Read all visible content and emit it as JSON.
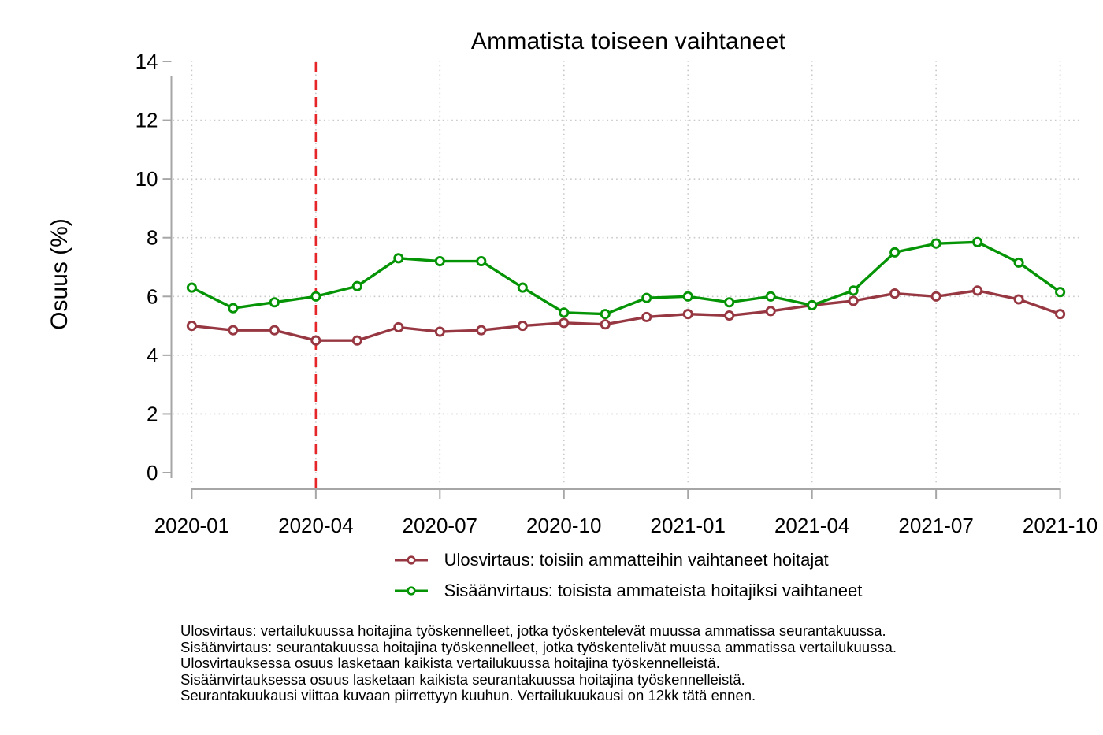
{
  "chart_data": {
    "type": "line",
    "title": "Ammatista toiseen vaihtaneet",
    "ylabel": "Osuus (%)",
    "xlabel": "",
    "ylim": [
      0,
      14
    ],
    "y_ticks": [
      0,
      2,
      4,
      6,
      8,
      10,
      12,
      14
    ],
    "grid": "dotted",
    "legend_position": "bottom",
    "x": [
      "2020-01",
      "2020-02",
      "2020-03",
      "2020-04",
      "2020-05",
      "2020-06",
      "2020-07",
      "2020-08",
      "2020-09",
      "2020-10",
      "2020-11",
      "2020-12",
      "2021-01",
      "2021-02",
      "2021-03",
      "2021-04",
      "2021-05",
      "2021-06",
      "2021-07",
      "2021-08",
      "2021-09",
      "2021-10"
    ],
    "x_tick_labels": [
      "2020-01",
      "2020-04",
      "2020-07",
      "2020-10",
      "2021-01",
      "2021-04",
      "2021-07",
      "2021-10"
    ],
    "series": [
      {
        "name": "Ulosvirtaus: toisiin ammatteihin vaihtaneet hoitajat",
        "color": "#963741",
        "values": [
          5.0,
          4.85,
          4.85,
          4.5,
          4.5,
          4.95,
          4.8,
          4.85,
          5.0,
          5.1,
          5.05,
          5.3,
          5.4,
          5.35,
          5.5,
          5.7,
          5.85,
          6.1,
          6.0,
          6.2,
          5.9,
          5.4
        ]
      },
      {
        "name": "Sisäänvirtaus: toisista ammateista hoitajiksi vaihtaneet",
        "color": "#059405",
        "values": [
          6.3,
          5.6,
          5.8,
          6.0,
          6.35,
          7.3,
          7.2,
          7.2,
          6.3,
          5.45,
          5.4,
          5.95,
          6.0,
          5.8,
          6.0,
          5.7,
          6.2,
          7.5,
          7.8,
          7.85,
          7.15,
          6.15
        ]
      }
    ],
    "reference_line": {
      "x": "2020-04",
      "color": "#e52528",
      "style": "dashed"
    }
  },
  "footnotes": [
    "Ulosvirtaus: vertailukuussa hoitajina työskennelleet, jotka työskentelevät muussa ammatissa seurantakuussa.",
    "Sisäänvirtaus: seurantakuussa hoitajina työskennelleet, jotka työskentelivät muussa ammatissa vertailukuussa.",
    "Ulosvirtauksessa osuus lasketaan kaikista vertailukuussa hoitajina työskennelleistä.",
    "Sisäänvirtauksessa osuus lasketaan kaikista seurantakuussa hoitajina työskennelleistä.",
    "Seurantakuukausi viittaa kuvaan piirrettyyn kuuhun. Vertailukuukausi on 12kk tätä ennen."
  ],
  "colors": {
    "background": "#ffffff",
    "axis": "#a6a6a6",
    "gridline": "#c9c9c9",
    "text": "#000000"
  }
}
